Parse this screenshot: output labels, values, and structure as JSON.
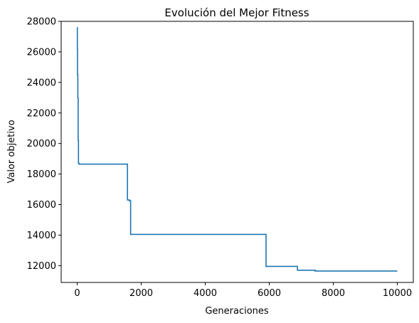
{
  "chart_data": {
    "type": "line",
    "title": "Evolución del Mejor Fitness",
    "xlabel": "Generaciones",
    "ylabel": "Valor objetivo",
    "xlim": [
      -500,
      10500
    ],
    "ylim": [
      10900,
      28000
    ],
    "xticks": [
      0,
      2000,
      4000,
      6000,
      8000,
      10000
    ],
    "xtick_labels": [
      "0",
      "2000",
      "4000",
      "6000",
      "8000",
      "10000"
    ],
    "yticks": [
      12000,
      14000,
      16000,
      18000,
      20000,
      22000,
      24000,
      26000,
      28000
    ],
    "ytick_labels": [
      "12000",
      "14000",
      "16000",
      "18000",
      "20000",
      "22000",
      "24000",
      "26000",
      "28000"
    ],
    "grid": false,
    "series": [
      {
        "color": "#1f77b4",
        "step": true,
        "x": [
          0,
          5,
          10,
          20,
          30,
          40,
          60,
          1570,
          1630,
          1670,
          5900,
          6880,
          7430,
          10000
        ],
        "y": [
          27600,
          26200,
          24500,
          23000,
          20200,
          18700,
          18650,
          16300,
          16250,
          14050,
          11950,
          11700,
          11650,
          11650
        ]
      }
    ]
  }
}
